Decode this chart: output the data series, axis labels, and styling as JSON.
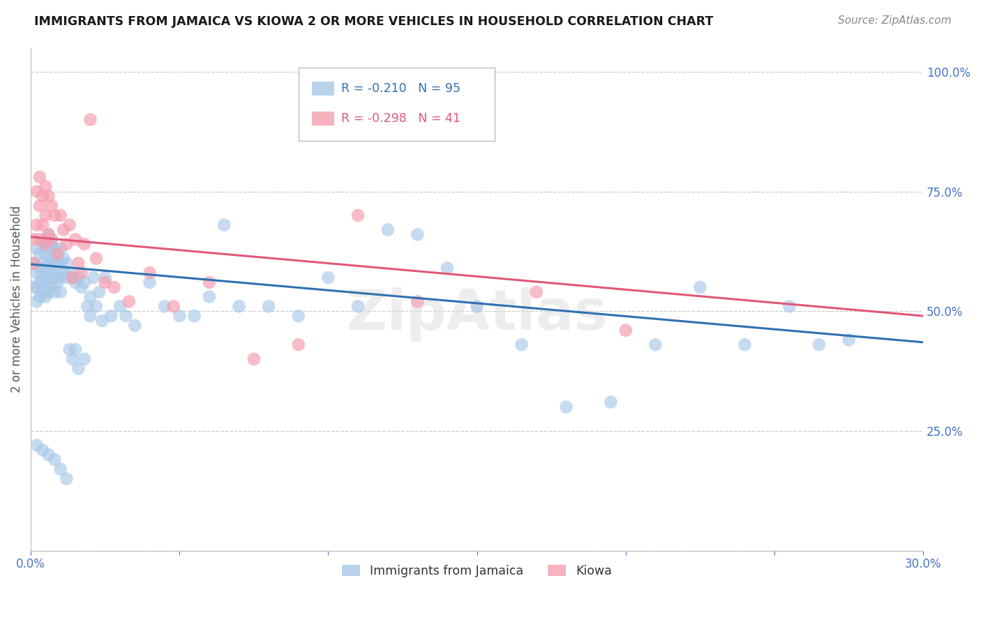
{
  "title": "IMMIGRANTS FROM JAMAICA VS KIOWA 2 OR MORE VEHICLES IN HOUSEHOLD CORRELATION CHART",
  "source": "Source: ZipAtlas.com",
  "ylabel": "2 or more Vehicles in Household",
  "ytick_labels": [
    "",
    "25.0%",
    "50.0%",
    "75.0%",
    "100.0%"
  ],
  "yticks": [
    0.0,
    0.25,
    0.5,
    0.75,
    1.0
  ],
  "watermark": "ZipAtlas",
  "legend_blue_R": "-0.210",
  "legend_blue_N": "95",
  "legend_pink_R": "-0.298",
  "legend_pink_N": "41",
  "legend_label_blue": "Immigrants from Jamaica",
  "legend_label_pink": "Kiowa",
  "blue_color": "#a8c8e8",
  "pink_color": "#f4a0b0",
  "line_blue_color": "#3070b0",
  "line_pink_color": "#e05878",
  "axis_label_color": "#4472c4",
  "blue_scatter_x": [
    0.001,
    0.001,
    0.002,
    0.002,
    0.002,
    0.002,
    0.003,
    0.003,
    0.003,
    0.003,
    0.004,
    0.004,
    0.004,
    0.004,
    0.005,
    0.005,
    0.005,
    0.005,
    0.005,
    0.006,
    0.006,
    0.006,
    0.006,
    0.006,
    0.007,
    0.007,
    0.007,
    0.007,
    0.008,
    0.008,
    0.008,
    0.008,
    0.009,
    0.009,
    0.009,
    0.01,
    0.01,
    0.01,
    0.01,
    0.011,
    0.011,
    0.012,
    0.012,
    0.013,
    0.013,
    0.014,
    0.014,
    0.015,
    0.015,
    0.016,
    0.016,
    0.017,
    0.018,
    0.018,
    0.019,
    0.02,
    0.02,
    0.021,
    0.022,
    0.023,
    0.024,
    0.025,
    0.027,
    0.03,
    0.032,
    0.035,
    0.04,
    0.045,
    0.05,
    0.055,
    0.06,
    0.065,
    0.07,
    0.08,
    0.09,
    0.1,
    0.11,
    0.12,
    0.13,
    0.14,
    0.15,
    0.165,
    0.18,
    0.195,
    0.21,
    0.225,
    0.24,
    0.255,
    0.265,
    0.275,
    0.002,
    0.004,
    0.006,
    0.008,
    0.01,
    0.012
  ],
  "blue_scatter_y": [
    0.6,
    0.55,
    0.63,
    0.58,
    0.55,
    0.52,
    0.62,
    0.59,
    0.56,
    0.53,
    0.64,
    0.6,
    0.57,
    0.54,
    0.65,
    0.62,
    0.59,
    0.56,
    0.53,
    0.66,
    0.63,
    0.6,
    0.57,
    0.54,
    0.64,
    0.61,
    0.58,
    0.55,
    0.63,
    0.6,
    0.57,
    0.54,
    0.62,
    0.59,
    0.56,
    0.63,
    0.6,
    0.57,
    0.54,
    0.61,
    0.58,
    0.6,
    0.57,
    0.58,
    0.42,
    0.57,
    0.4,
    0.56,
    0.42,
    0.57,
    0.38,
    0.55,
    0.56,
    0.4,
    0.51,
    0.53,
    0.49,
    0.57,
    0.51,
    0.54,
    0.48,
    0.57,
    0.49,
    0.51,
    0.49,
    0.47,
    0.56,
    0.51,
    0.49,
    0.49,
    0.53,
    0.68,
    0.51,
    0.51,
    0.49,
    0.57,
    0.51,
    0.67,
    0.66,
    0.59,
    0.51,
    0.43,
    0.3,
    0.31,
    0.43,
    0.55,
    0.43,
    0.51,
    0.43,
    0.44,
    0.22,
    0.21,
    0.2,
    0.19,
    0.17,
    0.15
  ],
  "pink_scatter_x": [
    0.001,
    0.001,
    0.002,
    0.002,
    0.003,
    0.003,
    0.003,
    0.004,
    0.004,
    0.005,
    0.005,
    0.005,
    0.006,
    0.006,
    0.007,
    0.007,
    0.008,
    0.009,
    0.01,
    0.011,
    0.012,
    0.013,
    0.014,
    0.015,
    0.016,
    0.017,
    0.018,
    0.02,
    0.022,
    0.025,
    0.028,
    0.033,
    0.04,
    0.048,
    0.06,
    0.075,
    0.09,
    0.11,
    0.13,
    0.17,
    0.2
  ],
  "pink_scatter_y": [
    0.65,
    0.6,
    0.75,
    0.68,
    0.78,
    0.72,
    0.65,
    0.74,
    0.68,
    0.76,
    0.7,
    0.64,
    0.74,
    0.66,
    0.72,
    0.65,
    0.7,
    0.62,
    0.7,
    0.67,
    0.64,
    0.68,
    0.57,
    0.65,
    0.6,
    0.58,
    0.64,
    0.9,
    0.61,
    0.56,
    0.55,
    0.52,
    0.58,
    0.51,
    0.56,
    0.4,
    0.43,
    0.7,
    0.52,
    0.54,
    0.46
  ],
  "xlim": [
    0.0,
    0.3
  ],
  "ylim": [
    0.0,
    1.05
  ],
  "blue_line_x0": 0.0,
  "blue_line_x1": 0.3,
  "blue_line_y0": 0.598,
  "blue_line_y1": 0.435,
  "pink_line_x0": 0.0,
  "pink_line_x1": 0.3,
  "pink_line_y0": 0.655,
  "pink_line_y1": 0.49
}
